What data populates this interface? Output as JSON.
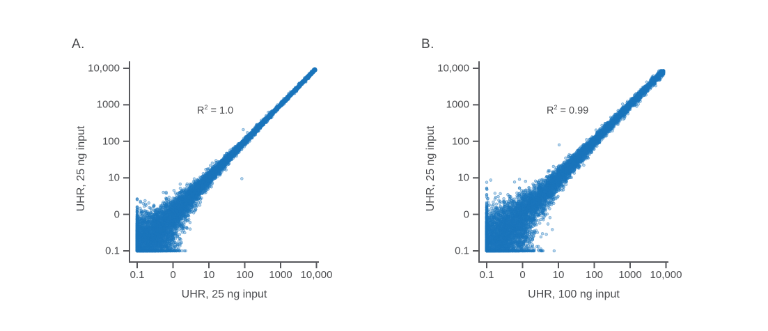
{
  "figure": {
    "background": "#FFFFFF",
    "text_color": "#4B4C4F",
    "axis_color": "#57585C",
    "point_color": "#1B75BC"
  },
  "chart_data": [
    {
      "type": "scatter",
      "panel_label": "A.",
      "xlabel": "UHR, 25 ng input",
      "ylabel": "UHR, 25 ng input",
      "annotation": {
        "prefix": "R",
        "sup": "2",
        "rest": " = 1.0"
      },
      "r_squared": 1.0,
      "scale": "log-log",
      "axis_decades": [
        -1,
        4
      ],
      "x_tick_labels": [
        "0.1",
        "0",
        "10",
        "100",
        "1000",
        "10,000"
      ],
      "y_tick_labels": [
        "10,000",
        "1000",
        "100",
        "10",
        "0",
        "0.1"
      ],
      "grid": false,
      "legend": "none",
      "point_cloud": {
        "n": 9000,
        "seed": 42,
        "shape_exponent": 2.0,
        "noise_s0": 0.45,
        "noise_tau": 1.0,
        "noise_s1": 0.013,
        "floor_value": 0.1,
        "max_value": 9000
      },
      "outliers": [
        [
          83,
          9.5
        ],
        [
          91,
          209
        ]
      ]
    },
    {
      "type": "scatter",
      "panel_label": "B.",
      "xlabel": "UHR, 100 ng input",
      "ylabel": "UHR, 25 ng input",
      "annotation": {
        "prefix": "R",
        "sup": "2",
        "rest": " = 0.99"
      },
      "r_squared": 0.99,
      "scale": "log-log",
      "axis_decades": [
        -1,
        4
      ],
      "x_tick_labels": [
        "0.1",
        "0",
        "10",
        "100",
        "1000",
        "10,000"
      ],
      "y_tick_labels": [
        "10,000",
        "1000",
        "100",
        "10",
        "0",
        "0.1"
      ],
      "grid": false,
      "legend": "none",
      "point_cloud": {
        "n": 9000,
        "seed": 1337,
        "shape_exponent": 2.0,
        "noise_s0": 0.52,
        "noise_tau": 1.05,
        "noise_s1": 0.032,
        "floor_value": 0.1,
        "max_value": 8000
      },
      "outliers": [
        [
          10.5,
          80
        ]
      ]
    }
  ]
}
